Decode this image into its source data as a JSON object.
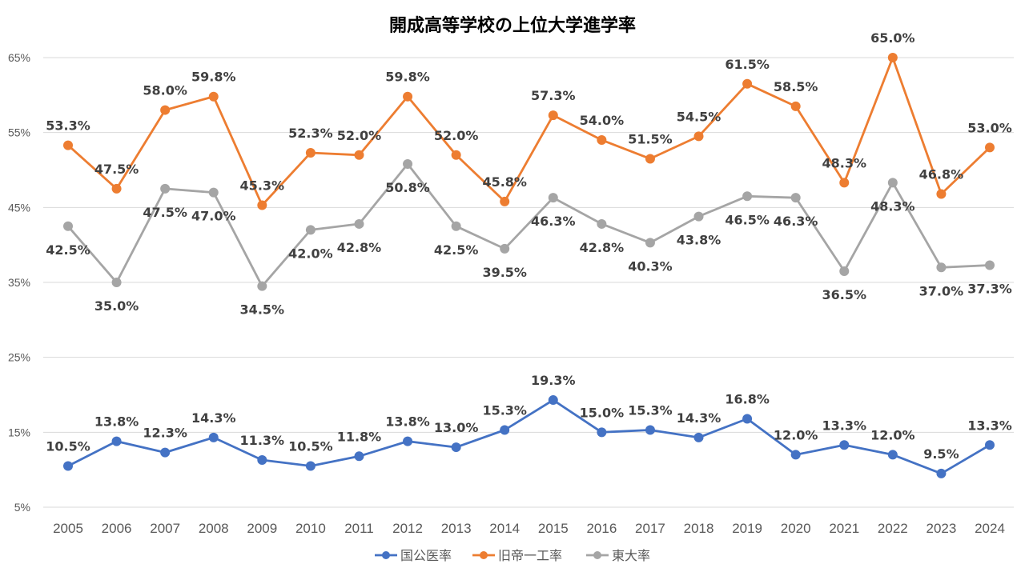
{
  "chart_data": {
    "type": "line",
    "title": "開成高等学校の上位大学進学率",
    "xlabel": "",
    "ylabel": "",
    "x": [
      "2005",
      "2006",
      "2007",
      "2008",
      "2009",
      "2010",
      "2011",
      "2012",
      "2013",
      "2014",
      "2015",
      "2016",
      "2017",
      "2018",
      "2019",
      "2020",
      "2021",
      "2022",
      "2023",
      "2024"
    ],
    "ylim": [
      5,
      65
    ],
    "yticks": [
      5,
      15,
      25,
      35,
      45,
      55,
      65
    ],
    "ytick_labels": [
      "5%",
      "15%",
      "25%",
      "35%",
      "45%",
      "55%",
      "65%"
    ],
    "grid": true,
    "legend_position": "bottom",
    "series": [
      {
        "name": "国公医率",
        "color": "#4472C4",
        "label_position": "above",
        "values": [
          10.5,
          13.8,
          12.3,
          14.3,
          11.3,
          10.5,
          11.8,
          13.8,
          13.0,
          15.3,
          19.3,
          15.0,
          15.3,
          14.3,
          16.8,
          12.0,
          13.3,
          12.0,
          9.5,
          13.3
        ],
        "labels": [
          "10.5%",
          "13.8%",
          "12.3%",
          "14.3%",
          "11.3%",
          "10.5%",
          "11.8%",
          "13.8%",
          "13.0%",
          "15.3%",
          "19.3%",
          "15.0%",
          "15.3%",
          "14.3%",
          "16.8%",
          "12.0%",
          "13.3%",
          "12.0%",
          "9.5%",
          "13.3%"
        ]
      },
      {
        "name": "旧帝一工率",
        "color": "#ED7D31",
        "label_position": "above",
        "values": [
          53.3,
          47.5,
          58.0,
          59.8,
          45.3,
          52.3,
          52.0,
          59.8,
          52.0,
          45.8,
          57.3,
          54.0,
          51.5,
          54.5,
          61.5,
          58.5,
          48.3,
          65.0,
          46.8,
          53.0
        ],
        "labels": [
          "53.3%",
          "47.5%",
          "58.0%",
          "59.8%",
          "45.3%",
          "52.3%",
          "52.0%",
          "59.8%",
          "52.0%",
          "45.8%",
          "57.3%",
          "54.0%",
          "51.5%",
          "54.5%",
          "61.5%",
          "58.5%",
          "48.3%",
          "65.0%",
          "46.8%",
          "53.0%"
        ]
      },
      {
        "name": "東大率",
        "color": "#A5A5A5",
        "label_position": "below",
        "values": [
          42.5,
          35.0,
          47.5,
          47.0,
          34.5,
          42.0,
          42.8,
          50.8,
          42.5,
          39.5,
          46.3,
          42.8,
          40.3,
          43.8,
          46.5,
          46.3,
          36.5,
          48.3,
          37.0,
          37.3
        ],
        "labels": [
          "42.5%",
          "35.0%",
          "47.5%",
          "47.0%",
          "34.5%",
          "42.0%",
          "42.8%",
          "50.8%",
          "42.5%",
          "39.5%",
          "46.3%",
          "42.8%",
          "40.3%",
          "43.8%",
          "46.5%",
          "46.3%",
          "36.5%",
          "48.3%",
          "37.0%",
          "37.3%"
        ]
      }
    ],
    "colors": {
      "grid": "#D9D9D9",
      "axis_text": "#595959",
      "data_label": "#404040"
    }
  }
}
